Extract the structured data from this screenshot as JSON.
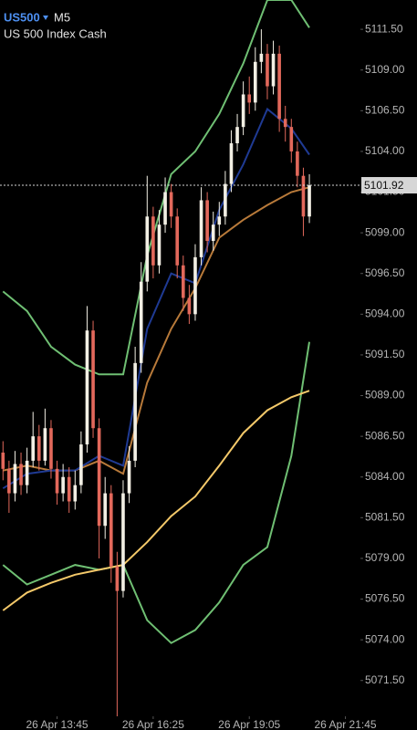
{
  "header": {
    "symbol": "US500",
    "timeframe": "M5",
    "description": "US 500 Index Cash"
  },
  "chart_data": {
    "type": "candlestick",
    "series": [
      {
        "name": "US500",
        "up_color": "#f2efe4",
        "down_color": "#e2685b",
        "open": [
          5085.5,
          5084.5,
          5083.0,
          5084.8,
          5083.5,
          5085.0,
          5086.5,
          5085.0,
          5087.0,
          5084.5,
          5083.0,
          5084.0,
          5082.5,
          5083.5,
          5086.0,
          5093.0,
          5087.0,
          5081.0,
          5083.0,
          5078.5,
          5077.0,
          5083.0,
          5085.0,
          5091.0,
          5096.0,
          5100.0,
          5097.0,
          5099.5,
          5101.5,
          5100.0,
          5097.0,
          5095.0,
          5094.0,
          5097.5,
          5101.0,
          5098.5,
          5099.5,
          5100.0,
          5102.0,
          5104.5,
          5105.5,
          5107.5,
          5107.0,
          5109.5,
          5110.0,
          5108.0,
          5110.0,
          5106.0,
          5105.5,
          5104.0,
          5102.5,
          5100.0
        ],
        "high": [
          5086.2,
          5085.0,
          5085.6,
          5085.5,
          5085.8,
          5088.0,
          5087.2,
          5088.2,
          5087.5,
          5085.0,
          5084.8,
          5084.6,
          5084.4,
          5086.8,
          5094.5,
          5093.6,
          5087.6,
          5084.0,
          5083.5,
          5079.4,
          5083.8,
          5085.9,
          5092.0,
          5097.2,
          5102.5,
          5100.6,
          5100.4,
          5102.4,
          5102.0,
          5100.5,
          5097.6,
          5095.8,
          5098.3,
          5101.8,
          5101.5,
          5100.3,
          5100.9,
          5102.8,
          5105.3,
          5106.3,
          5108.3,
          5108.6,
          5110.4,
          5111.5,
          5110.6,
          5110.8,
          5110.5,
          5106.8,
          5106.0,
          5104.6,
          5103.0,
          5102.6
        ],
        "low": [
          5083.8,
          5081.8,
          5082.5,
          5082.9,
          5083.0,
          5084.6,
          5084.4,
          5084.7,
          5083.9,
          5082.3,
          5082.5,
          5081.8,
          5082.0,
          5083.0,
          5085.5,
          5086.4,
          5079.0,
          5080.2,
          5077.5,
          5069.3,
          5076.6,
          5082.4,
          5084.6,
          5090.4,
          5095.4,
          5096.2,
          5096.5,
          5099.0,
          5099.3,
          5096.2,
          5094.2,
          5093.4,
          5093.6,
          5097.0,
          5097.8,
          5097.9,
          5098.8,
          5099.5,
          5101.5,
          5104.0,
          5105.0,
          5106.3,
          5106.5,
          5108.8,
          5107.2,
          5107.5,
          5105.2,
          5104.6,
          5103.3,
          5101.8,
          5098.8,
          5099.6
        ],
        "close": [
          5084.5,
          5083.0,
          5084.8,
          5083.5,
          5085.0,
          5086.5,
          5085.0,
          5087.0,
          5084.5,
          5083.0,
          5084.0,
          5082.5,
          5083.5,
          5086.0,
          5093.0,
          5087.0,
          5081.0,
          5083.0,
          5078.5,
          5077.0,
          5083.0,
          5085.0,
          5091.0,
          5096.0,
          5100.0,
          5097.0,
          5099.5,
          5101.5,
          5100.0,
          5097.0,
          5095.0,
          5094.0,
          5097.5,
          5101.0,
          5098.5,
          5099.5,
          5100.0,
          5102.0,
          5104.5,
          5105.5,
          5107.5,
          5107.0,
          5109.5,
          5110.0,
          5108.0,
          5110.0,
          5106.0,
          5105.5,
          5104.0,
          5102.5,
          5100.0,
          5101.92
        ]
      }
    ],
    "lines": [
      {
        "color": "#6fbf73",
        "x": [
          0,
          4,
          8,
          12,
          16,
          20,
          24,
          28,
          32,
          36,
          40,
          44,
          48,
          51
        ],
        "values": [
          5095.4,
          5094.2,
          5092.0,
          5090.9,
          5090.3,
          5090.3,
          5097.6,
          5102.6,
          5104.0,
          5106.3,
          5109.4,
          5113.3,
          5113.3,
          5111.6
        ]
      },
      {
        "color": "#6fbf73",
        "x": [
          0,
          4,
          8,
          12,
          16,
          20,
          24,
          28,
          32,
          36,
          40,
          44,
          48,
          51
        ],
        "values": [
          5078.6,
          5077.4,
          5078.0,
          5078.6,
          5078.3,
          5078.6,
          5075.2,
          5073.8,
          5074.6,
          5076.3,
          5078.6,
          5079.7,
          5085.3,
          5092.3
        ]
      },
      {
        "color": "#f4c96a",
        "x": [
          0,
          4,
          8,
          12,
          16,
          20,
          24,
          28,
          32,
          36,
          40,
          44,
          48,
          51
        ],
        "values": [
          5075.8,
          5076.9,
          5077.5,
          5078.0,
          5078.3,
          5078.6,
          5080.0,
          5081.6,
          5082.8,
          5084.7,
          5086.7,
          5088.1,
          5088.9,
          5089.3
        ]
      },
      {
        "color": "#b87a3a",
        "x": [
          0,
          4,
          8,
          12,
          16,
          20,
          24,
          28,
          32,
          36,
          40,
          44,
          48,
          51
        ],
        "values": [
          5084.4,
          5084.7,
          5084.4,
          5084.4,
          5085.0,
          5084.2,
          5089.8,
          5093.1,
          5095.6,
          5098.7,
          5099.8,
          5100.7,
          5101.5,
          5101.8
        ]
      },
      {
        "color": "#1f3a93",
        "x": [
          0,
          4,
          8,
          12,
          16,
          20,
          24,
          28,
          32,
          36,
          40,
          44,
          48,
          51
        ],
        "values": [
          5083.3,
          5084.2,
          5084.4,
          5084.4,
          5085.3,
          5084.7,
          5093.1,
          5096.5,
          5095.9,
          5100.4,
          5103.2,
          5106.6,
          5105.4,
          5103.8
        ]
      }
    ],
    "last_price": 5101.92,
    "last_price_color": "#d6d6d6",
    "xlim": [
      -0.5,
      59.5
    ],
    "ylim": [
      5069.3,
      5113.3
    ],
    "xticks": [
      {
        "value": 9,
        "label": "26 Apr 13:45"
      },
      {
        "value": 25,
        "label": "26 Apr 16:25"
      },
      {
        "value": 41,
        "label": "26 Apr 19:05"
      },
      {
        "value": 57,
        "label": "26 Apr 21:45"
      }
    ],
    "yticks": [
      {
        "value": 5111.5,
        "label": "5111.50"
      },
      {
        "value": 5109,
        "label": "5109.00"
      },
      {
        "value": 5106.5,
        "label": "5106.50"
      },
      {
        "value": 5104,
        "label": "5104.00"
      },
      {
        "value": 5101.5,
        "label": "5101.50"
      },
      {
        "value": 5099,
        "label": "5099.00"
      },
      {
        "value": 5096.5,
        "label": "5096.50"
      },
      {
        "value": 5094,
        "label": "5094.00"
      },
      {
        "value": 5091.5,
        "label": "5091.50"
      },
      {
        "value": 5089,
        "label": "5089.00"
      },
      {
        "value": 5086.5,
        "label": "5086.50"
      },
      {
        "value": 5084,
        "label": "5084.00"
      },
      {
        "value": 5081.5,
        "label": "5081.50"
      },
      {
        "value": 5079,
        "label": "5079.00"
      },
      {
        "value": 5076.5,
        "label": "5076.50"
      },
      {
        "value": 5074,
        "label": "5074.00"
      },
      {
        "value": 5071.5,
        "label": "5071.50"
      }
    ]
  }
}
